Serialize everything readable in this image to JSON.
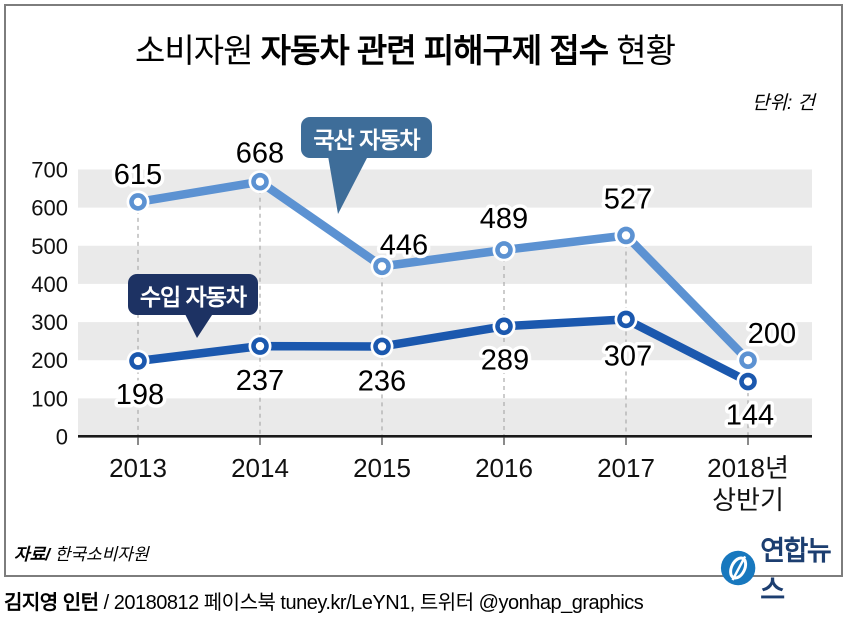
{
  "title": {
    "prefix": "소비자원 ",
    "emphasis": "자동차 관련 피해구제 접수",
    "suffix": " 현황"
  },
  "unit_label": "단위: 건",
  "chart_data": {
    "type": "line",
    "title": "소비자원 자동차 관련 피해구제 접수 현황",
    "unit": "건",
    "categories": [
      "2013",
      "2014",
      "2015",
      "2016",
      "2017",
      "2018년 상반기"
    ],
    "series": [
      {
        "name": "국산 자동차",
        "color": "#5C92D2",
        "values": [
          615,
          668,
          446,
          489,
          527,
          200
        ]
      },
      {
        "name": "수입 자동차",
        "color": "#1B58AE",
        "values": [
          198,
          237,
          236,
          289,
          307,
          144
        ]
      }
    ],
    "ylim": [
      0,
      700
    ],
    "y_ticks": [
      0,
      100,
      200,
      300,
      400,
      500,
      600,
      700
    ],
    "grid": "alternating-gray-bands",
    "band_color": "#EAEAEA",
    "legend_position": "callout-bubbles"
  },
  "callouts": {
    "domestic": {
      "label": "국산 자동차",
      "color": "#3E6D99"
    },
    "imported": {
      "label": "수입 자동차",
      "color": "#1D3263"
    }
  },
  "source": {
    "label": "자료/",
    "value": " 한국소비자원"
  },
  "logo": {
    "text": "연합뉴스",
    "circle_color": "#1878BE",
    "text_color": "#1C3E70"
  },
  "credit": {
    "author": "김지영 인턴",
    "rest": " / 20180812 페이스북 tuney.kr/LeYN1, 트위터 @yonhap_graphics"
  }
}
